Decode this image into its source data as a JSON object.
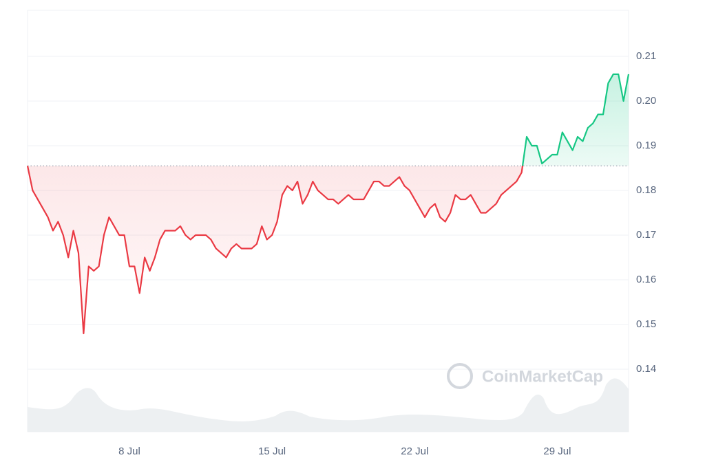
{
  "chart_data": {
    "type": "line",
    "watermark": "CoinMarketCap",
    "x": [
      3,
      3.25,
      3.5,
      3.75,
      4,
      4.25,
      4.5,
      4.75,
      5,
      5.25,
      5.5,
      5.75,
      6,
      6.25,
      6.5,
      6.75,
      7,
      7.25,
      7.5,
      7.75,
      8,
      8.25,
      8.5,
      8.75,
      9,
      9.25,
      9.5,
      9.75,
      10,
      10.25,
      10.5,
      10.75,
      11,
      11.25,
      11.5,
      11.75,
      12,
      12.25,
      12.5,
      12.75,
      13,
      13.25,
      13.5,
      13.75,
      14,
      14.25,
      14.5,
      14.75,
      15,
      15.25,
      15.5,
      15.75,
      16,
      16.25,
      16.5,
      16.75,
      17,
      17.25,
      17.5,
      17.75,
      18,
      18.25,
      18.5,
      18.75,
      19,
      19.25,
      19.5,
      19.75,
      20,
      20.25,
      20.5,
      20.75,
      21,
      21.25,
      21.5,
      21.75,
      22,
      22.25,
      22.5,
      22.75,
      23,
      23.25,
      23.5,
      23.75,
      24,
      24.25,
      24.5,
      24.75,
      25,
      25.25,
      25.5,
      25.75,
      26,
      26.25,
      26.5,
      26.75,
      27,
      27.25,
      27.5,
      27.75,
      28,
      28.25,
      28.5,
      28.75,
      29,
      29.25,
      29.5,
      29.75,
      30,
      30.25,
      30.5,
      30.75,
      31,
      31.25,
      31.5,
      31.75,
      32,
      32.25,
      32.5
    ],
    "series": [
      {
        "values": [
          0.1855,
          0.18,
          0.178,
          0.176,
          0.174,
          0.171,
          0.173,
          0.17,
          0.165,
          0.171,
          0.166,
          0.148,
          0.163,
          0.162,
          0.163,
          0.17,
          0.174,
          0.172,
          0.17,
          0.17,
          0.163,
          0.163,
          0.157,
          0.165,
          0.162,
          0.165,
          0.169,
          0.171,
          0.171,
          0.171,
          0.172,
          0.17,
          0.169,
          0.17,
          0.17,
          0.17,
          0.169,
          0.167,
          0.166,
          0.165,
          0.167,
          0.168,
          0.167,
          0.167,
          0.167,
          0.168,
          0.172,
          0.169,
          0.17,
          0.173,
          0.179,
          0.181,
          0.18,
          0.182,
          0.177,
          0.179,
          0.182,
          0.18,
          0.179,
          0.178,
          0.178,
          0.177,
          0.178,
          0.179,
          0.178,
          0.178,
          0.178,
          0.18,
          0.182,
          0.182,
          0.181,
          0.181,
          0.182,
          0.183,
          0.181,
          0.18,
          0.178,
          0.176,
          0.174,
          0.176,
          0.177,
          0.174,
          0.173,
          0.175,
          0.179,
          0.178,
          0.178,
          0.179,
          0.177,
          0.175,
          0.175,
          0.176,
          0.177,
          0.179,
          0.18,
          0.181,
          0.182,
          0.184,
          0.192,
          0.19,
          0.19,
          0.186,
          0.187,
          0.188,
          0.188,
          0.193,
          0.191,
          0.189,
          0.192,
          0.191,
          0.194,
          0.195,
          0.197,
          0.197,
          0.204,
          0.206,
          0.206,
          0.2,
          0.206
        ]
      }
    ],
    "baseline": 0.1855,
    "up_color": "#16c784",
    "down_color": "#ea3943",
    "xlim": [
      3,
      32.5
    ],
    "xticks": [
      {
        "value": 8,
        "label": "8 Jul"
      },
      {
        "value": 15,
        "label": "15 Jul"
      },
      {
        "value": 22,
        "label": "22 Jul"
      },
      {
        "value": 29,
        "label": "29 Jul"
      }
    ],
    "ylim": [
      0.126,
      0.2203
    ],
    "yticks": [
      0.14,
      0.15,
      0.16,
      0.17,
      0.18,
      0.19,
      {
        "value": 0.2,
        "label": "0.20"
      },
      0.21
    ],
    "grid": true
  }
}
